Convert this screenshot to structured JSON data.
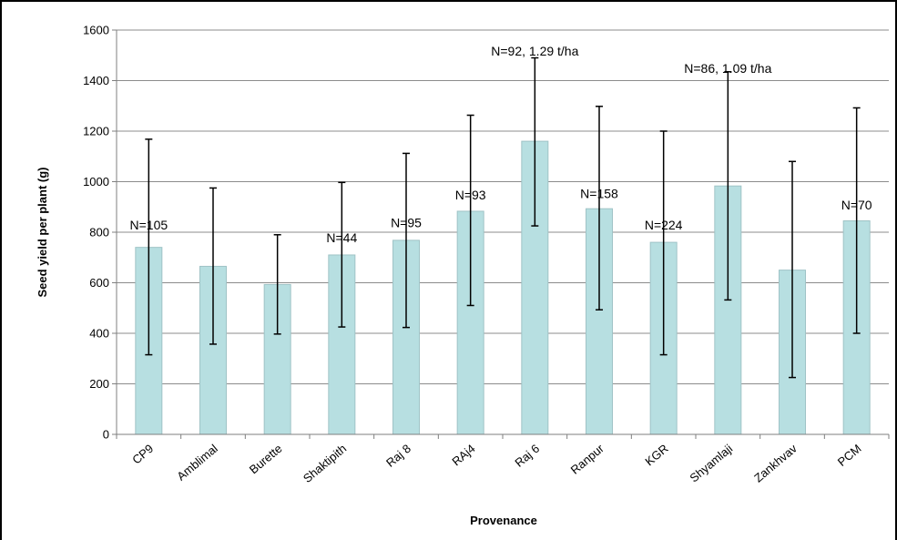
{
  "chart_data": {
    "type": "bar",
    "title": "",
    "xlabel": "Provenance",
    "ylabel": "Seed yield per plant (g)",
    "ylim": [
      0,
      1600
    ],
    "yticks": [
      0,
      200,
      400,
      600,
      800,
      1000,
      1200,
      1400,
      1600
    ],
    "grid": true,
    "legend": "none",
    "bar_color": "#b7dfe1",
    "categories": [
      "CP9",
      "Amblimal",
      "Burette",
      "Shaktipith",
      "Raj 8",
      "RAj4",
      "Raj 6",
      "Ranpur",
      "KGR",
      "Shyamlaji",
      "Zankhvav",
      "PCM"
    ],
    "values": [
      740,
      665,
      593,
      710,
      768,
      883,
      1160,
      893,
      760,
      983,
      650,
      845
    ],
    "error_low": [
      315,
      357,
      397,
      425,
      423,
      510,
      825,
      493,
      315,
      532,
      225,
      400
    ],
    "error_high": [
      1168,
      975,
      790,
      997,
      1112,
      1263,
      1490,
      1298,
      1200,
      1435,
      1080,
      1292
    ],
    "annotations": [
      {
        "category": "CP9",
        "text": "N=105",
        "y": 810
      },
      {
        "category": "Shaktipith",
        "text": "N=44",
        "y": 760
      },
      {
        "category": "Raj 8",
        "text": "N=95",
        "y": 820
      },
      {
        "category": "RAj4",
        "text": "N=93",
        "y": 930
      },
      {
        "category": "Raj 6",
        "text": "N=92, 1.29 t/ha",
        "y": 1500
      },
      {
        "category": "Ranpur",
        "text": "N=158",
        "y": 935
      },
      {
        "category": "KGR",
        "text": "N=224",
        "y": 810
      },
      {
        "category": "Shyamlaji",
        "text": "N=86, 1.09 t/ha",
        "y": 1430
      },
      {
        "category": "PCM",
        "text": "N=70",
        "y": 890
      }
    ]
  }
}
